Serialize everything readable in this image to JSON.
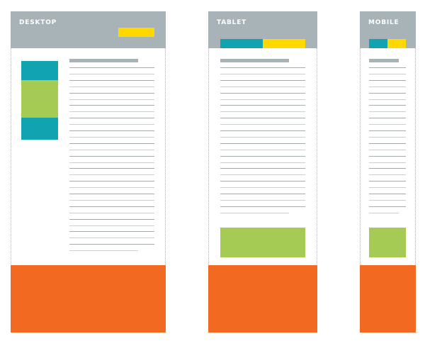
{
  "frames": {
    "desktop": {
      "label": "DESKTOP"
    },
    "tablet": {
      "label": "TABLET"
    },
    "mobile": {
      "label": "MOBILE"
    }
  },
  "colors": {
    "header": "#a7b3b6",
    "teal": "#12a3b0",
    "yellow": "#ffd800",
    "green": "#a6cb55",
    "orange": "#f26a22"
  }
}
